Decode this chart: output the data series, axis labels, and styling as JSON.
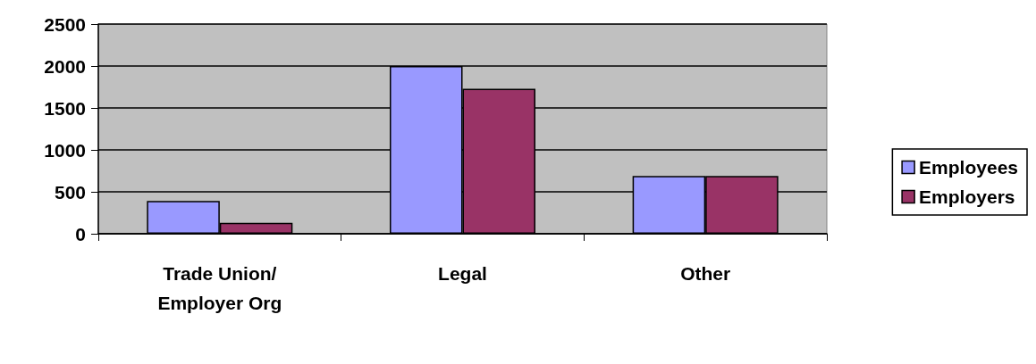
{
  "chart_data": {
    "type": "bar",
    "categories": [
      "Trade Union/Employer Org",
      "Legal",
      "Other"
    ],
    "series": [
      {
        "name": "Employees",
        "color": "#9999ff",
        "values": [
          390,
          2000,
          690
        ]
      },
      {
        "name": "Employers",
        "color": "#993366",
        "values": [
          130,
          1730,
          690
        ]
      }
    ],
    "ylim": [
      0,
      2500
    ],
    "yticks": [
      0,
      500,
      1000,
      1500,
      2000,
      2500
    ],
    "grid": "y",
    "legend": "right"
  }
}
